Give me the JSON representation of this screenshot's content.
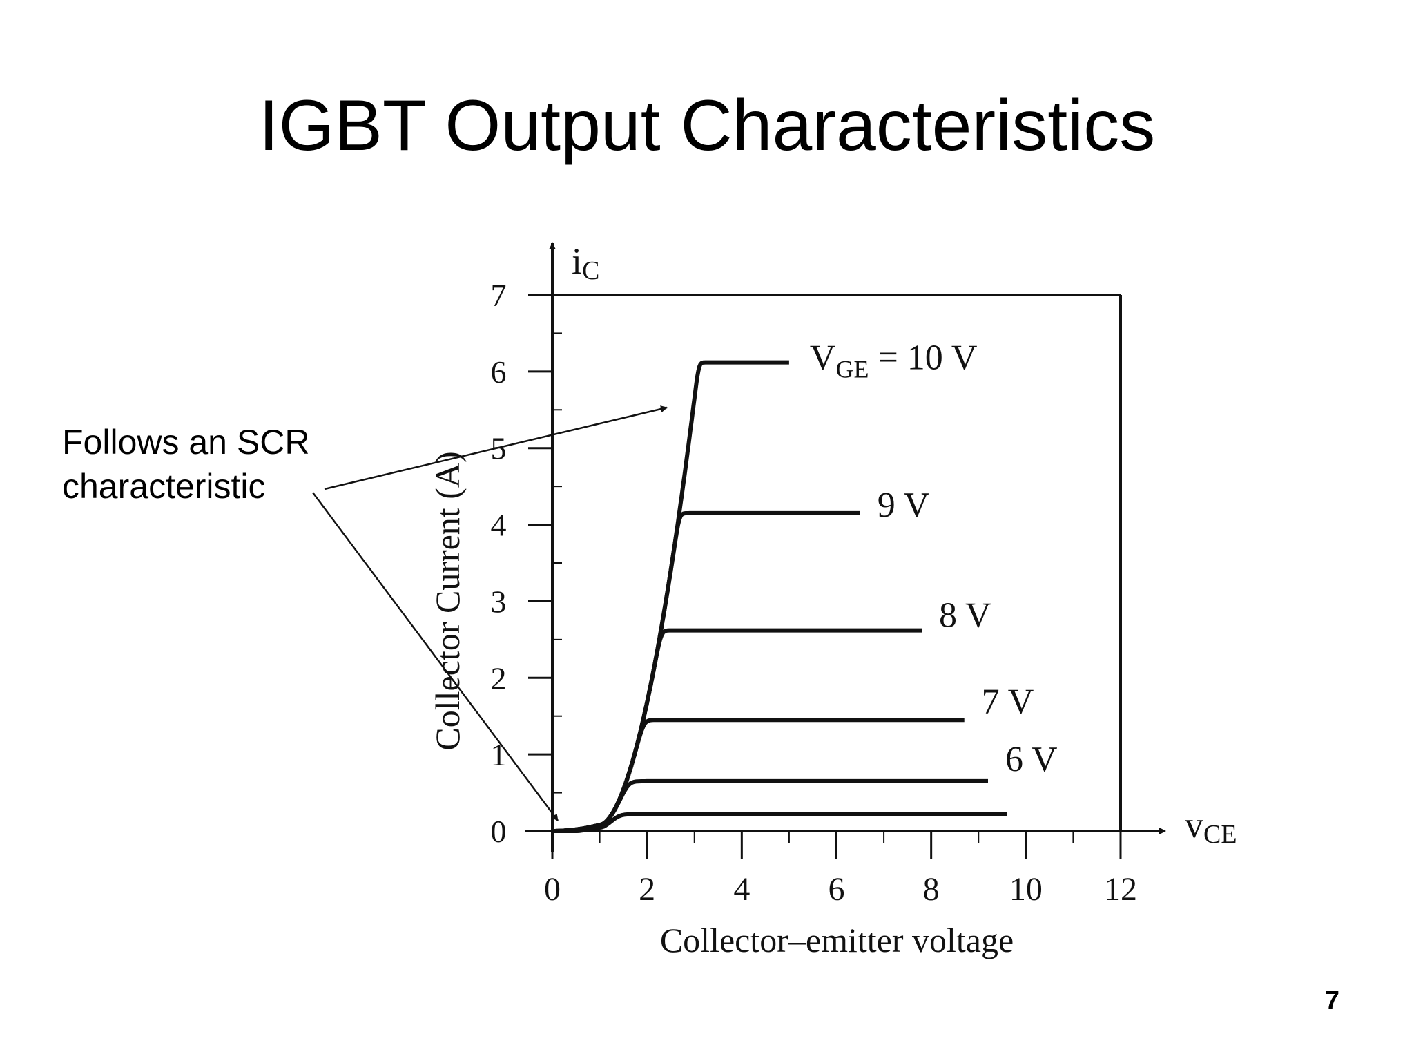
{
  "slide": {
    "title": "IGBT Output Characteristics",
    "annotation_lines": [
      "Follows an SCR",
      "characteristic"
    ],
    "page_number": "7"
  },
  "chart_data": {
    "type": "line",
    "title": "",
    "xlabel": "Collector–emitter voltage",
    "ylabel": "Collector Current (A)",
    "x_axis_symbol": {
      "main": "v",
      "sub": "CE"
    },
    "y_axis_symbol": {
      "main": "i",
      "sub": "C"
    },
    "xlim": [
      0,
      12
    ],
    "ylim": [
      0,
      7
    ],
    "x_ticks": [
      "0",
      "2",
      "4",
      "6",
      "8",
      "10",
      "12"
    ],
    "y_ticks": [
      "0",
      "1",
      "2",
      "3",
      "4",
      "5",
      "6",
      "7"
    ],
    "grid": false,
    "series": [
      {
        "label_main": "V",
        "label_sub": "GE",
        "label_rest": " = 10 V",
        "x_end": 5.0,
        "sat": 6.12,
        "knee": 4.2
      },
      {
        "label_main": "",
        "label_sub": "",
        "label_rest": "9 V",
        "x_end": 6.5,
        "sat": 4.15,
        "knee": 3.3
      },
      {
        "label_main": "",
        "label_sub": "",
        "label_rest": "8 V",
        "x_end": 7.8,
        "sat": 2.62,
        "knee": 3.0
      },
      {
        "label_main": "",
        "label_sub": "",
        "label_rest": "7 V",
        "x_end": 8.7,
        "sat": 1.45,
        "knee": 3.0
      },
      {
        "label_main": "",
        "label_sub": "",
        "label_rest": "6 V",
        "x_end": 9.2,
        "sat": 0.65,
        "knee": 2.6
      },
      {
        "label_main": "",
        "label_sub": "",
        "label_rest": "",
        "x_end": 9.6,
        "sat": 0.22,
        "knee": 1.3
      }
    ],
    "threshold_voltage": 1.0
  },
  "colors": {
    "ink": "#111111",
    "background": "#ffffff"
  }
}
